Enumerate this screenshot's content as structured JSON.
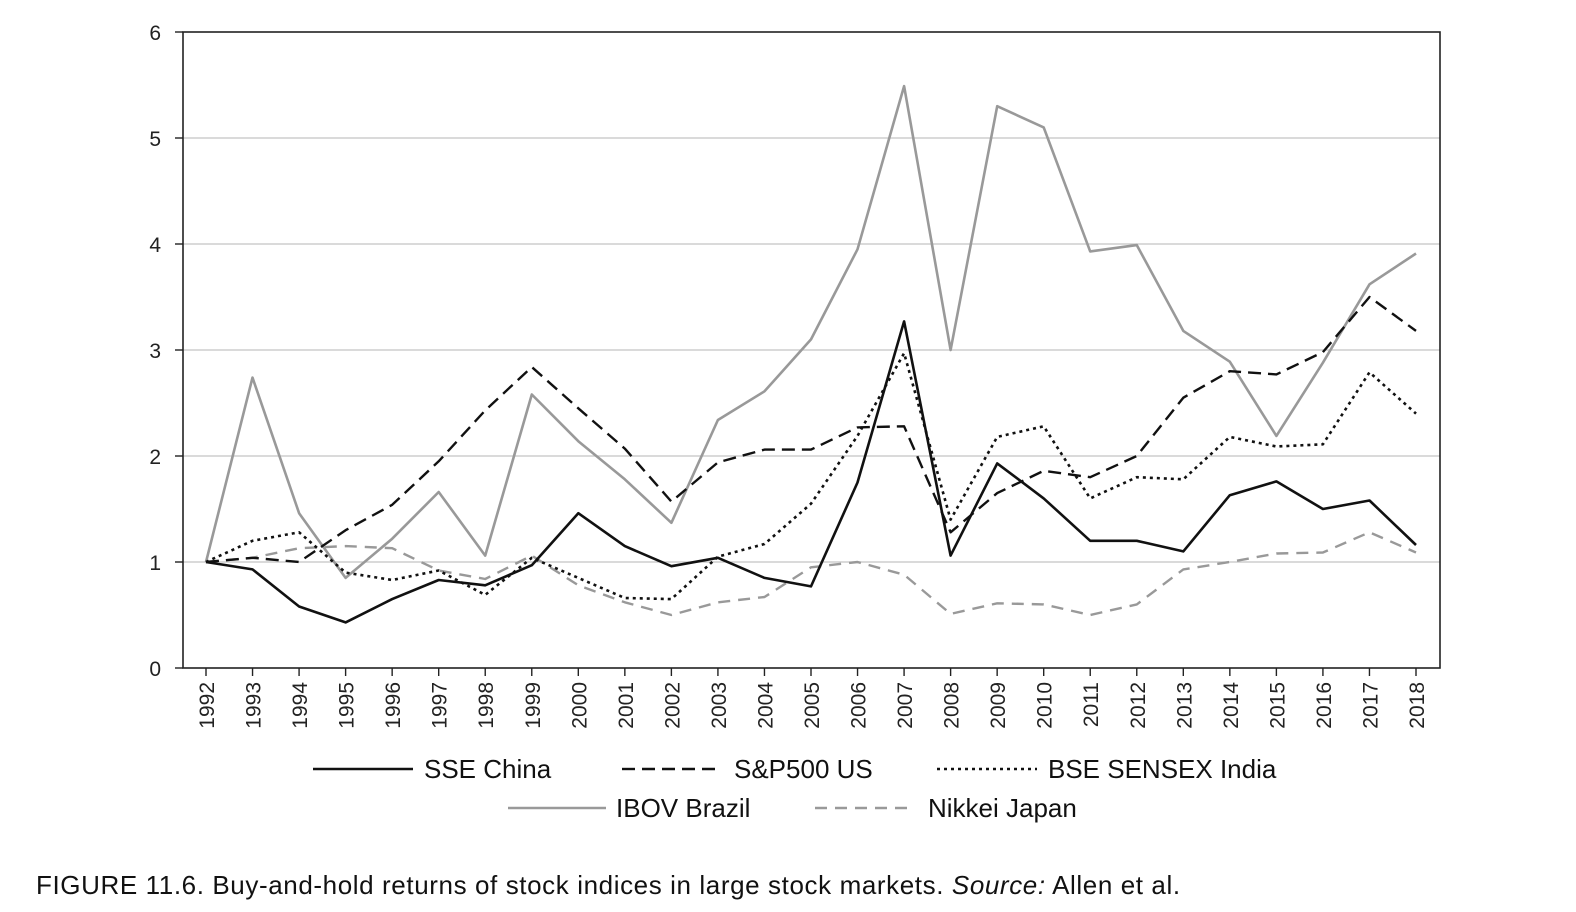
{
  "chart_data": {
    "type": "line",
    "x": [
      "1992",
      "1993",
      "1994",
      "1995",
      "1996",
      "1997",
      "1998",
      "1999",
      "2000",
      "2001",
      "2002",
      "2003",
      "2004",
      "2005",
      "2006",
      "2007",
      "2008",
      "2009",
      "2010",
      "2011",
      "2012",
      "2013",
      "2014",
      "2015",
      "2016",
      "2017",
      "2018"
    ],
    "ylim": [
      0,
      6
    ],
    "yticks": [
      "0",
      "1",
      "2",
      "3",
      "4",
      "5",
      "6"
    ],
    "grid": "horizontal",
    "legend_position": "bottom",
    "series": [
      {
        "name": "SSE China",
        "color": "#111111",
        "dash": "solid",
        "values": [
          1.0,
          0.93,
          0.58,
          0.43,
          0.65,
          0.83,
          0.78,
          0.97,
          1.46,
          1.15,
          0.96,
          1.04,
          0.85,
          0.77,
          1.75,
          3.27,
          1.06,
          1.93,
          1.6,
          1.2,
          1.2,
          1.1,
          1.63,
          1.76,
          1.5,
          1.58,
          1.16
        ]
      },
      {
        "name": "S&P500 US",
        "color": "#111111",
        "dash": "dashed",
        "values": [
          1.0,
          1.04,
          1.0,
          1.3,
          1.54,
          1.95,
          2.43,
          2.84,
          2.45,
          2.07,
          1.57,
          1.94,
          2.06,
          2.06,
          2.27,
          2.28,
          1.28,
          1.65,
          1.86,
          1.8,
          2.0,
          2.55,
          2.8,
          2.77,
          2.98,
          3.5,
          3.18
        ]
      },
      {
        "name": "BSE SENSEX India",
        "color": "#111111",
        "dash": "dotted",
        "values": [
          1.0,
          1.2,
          1.28,
          0.9,
          0.83,
          0.92,
          0.69,
          1.04,
          0.85,
          0.66,
          0.65,
          1.05,
          1.17,
          1.55,
          2.19,
          2.97,
          1.4,
          2.18,
          2.28,
          1.6,
          1.8,
          1.78,
          2.18,
          2.09,
          2.11,
          2.79,
          2.4
        ]
      },
      {
        "name": "IBOV Brazil",
        "color": "#999999",
        "dash": "solid",
        "values": [
          1.0,
          2.74,
          1.46,
          0.85,
          1.22,
          1.66,
          1.06,
          2.58,
          2.14,
          1.78,
          1.37,
          2.34,
          2.61,
          3.1,
          3.95,
          5.49,
          3.0,
          5.3,
          5.1,
          3.93,
          3.99,
          3.18,
          2.89,
          2.19,
          2.88,
          3.62,
          3.91
        ]
      },
      {
        "name": "Nikkei Japan",
        "color": "#999999",
        "dash": "longdash",
        "values": [
          1.0,
          1.04,
          1.13,
          1.15,
          1.13,
          0.92,
          0.84,
          1.06,
          0.78,
          0.62,
          0.5,
          0.62,
          0.67,
          0.95,
          1.0,
          0.88,
          0.51,
          0.61,
          0.6,
          0.5,
          0.6,
          0.93,
          1.0,
          1.08,
          1.09,
          1.28,
          1.09
        ]
      }
    ]
  },
  "caption": {
    "main": "FIGURE 11.6. Buy-and-hold returns of stock indices in large stock markets. ",
    "source_label": "Source:",
    "source_text": " Allen et al."
  }
}
